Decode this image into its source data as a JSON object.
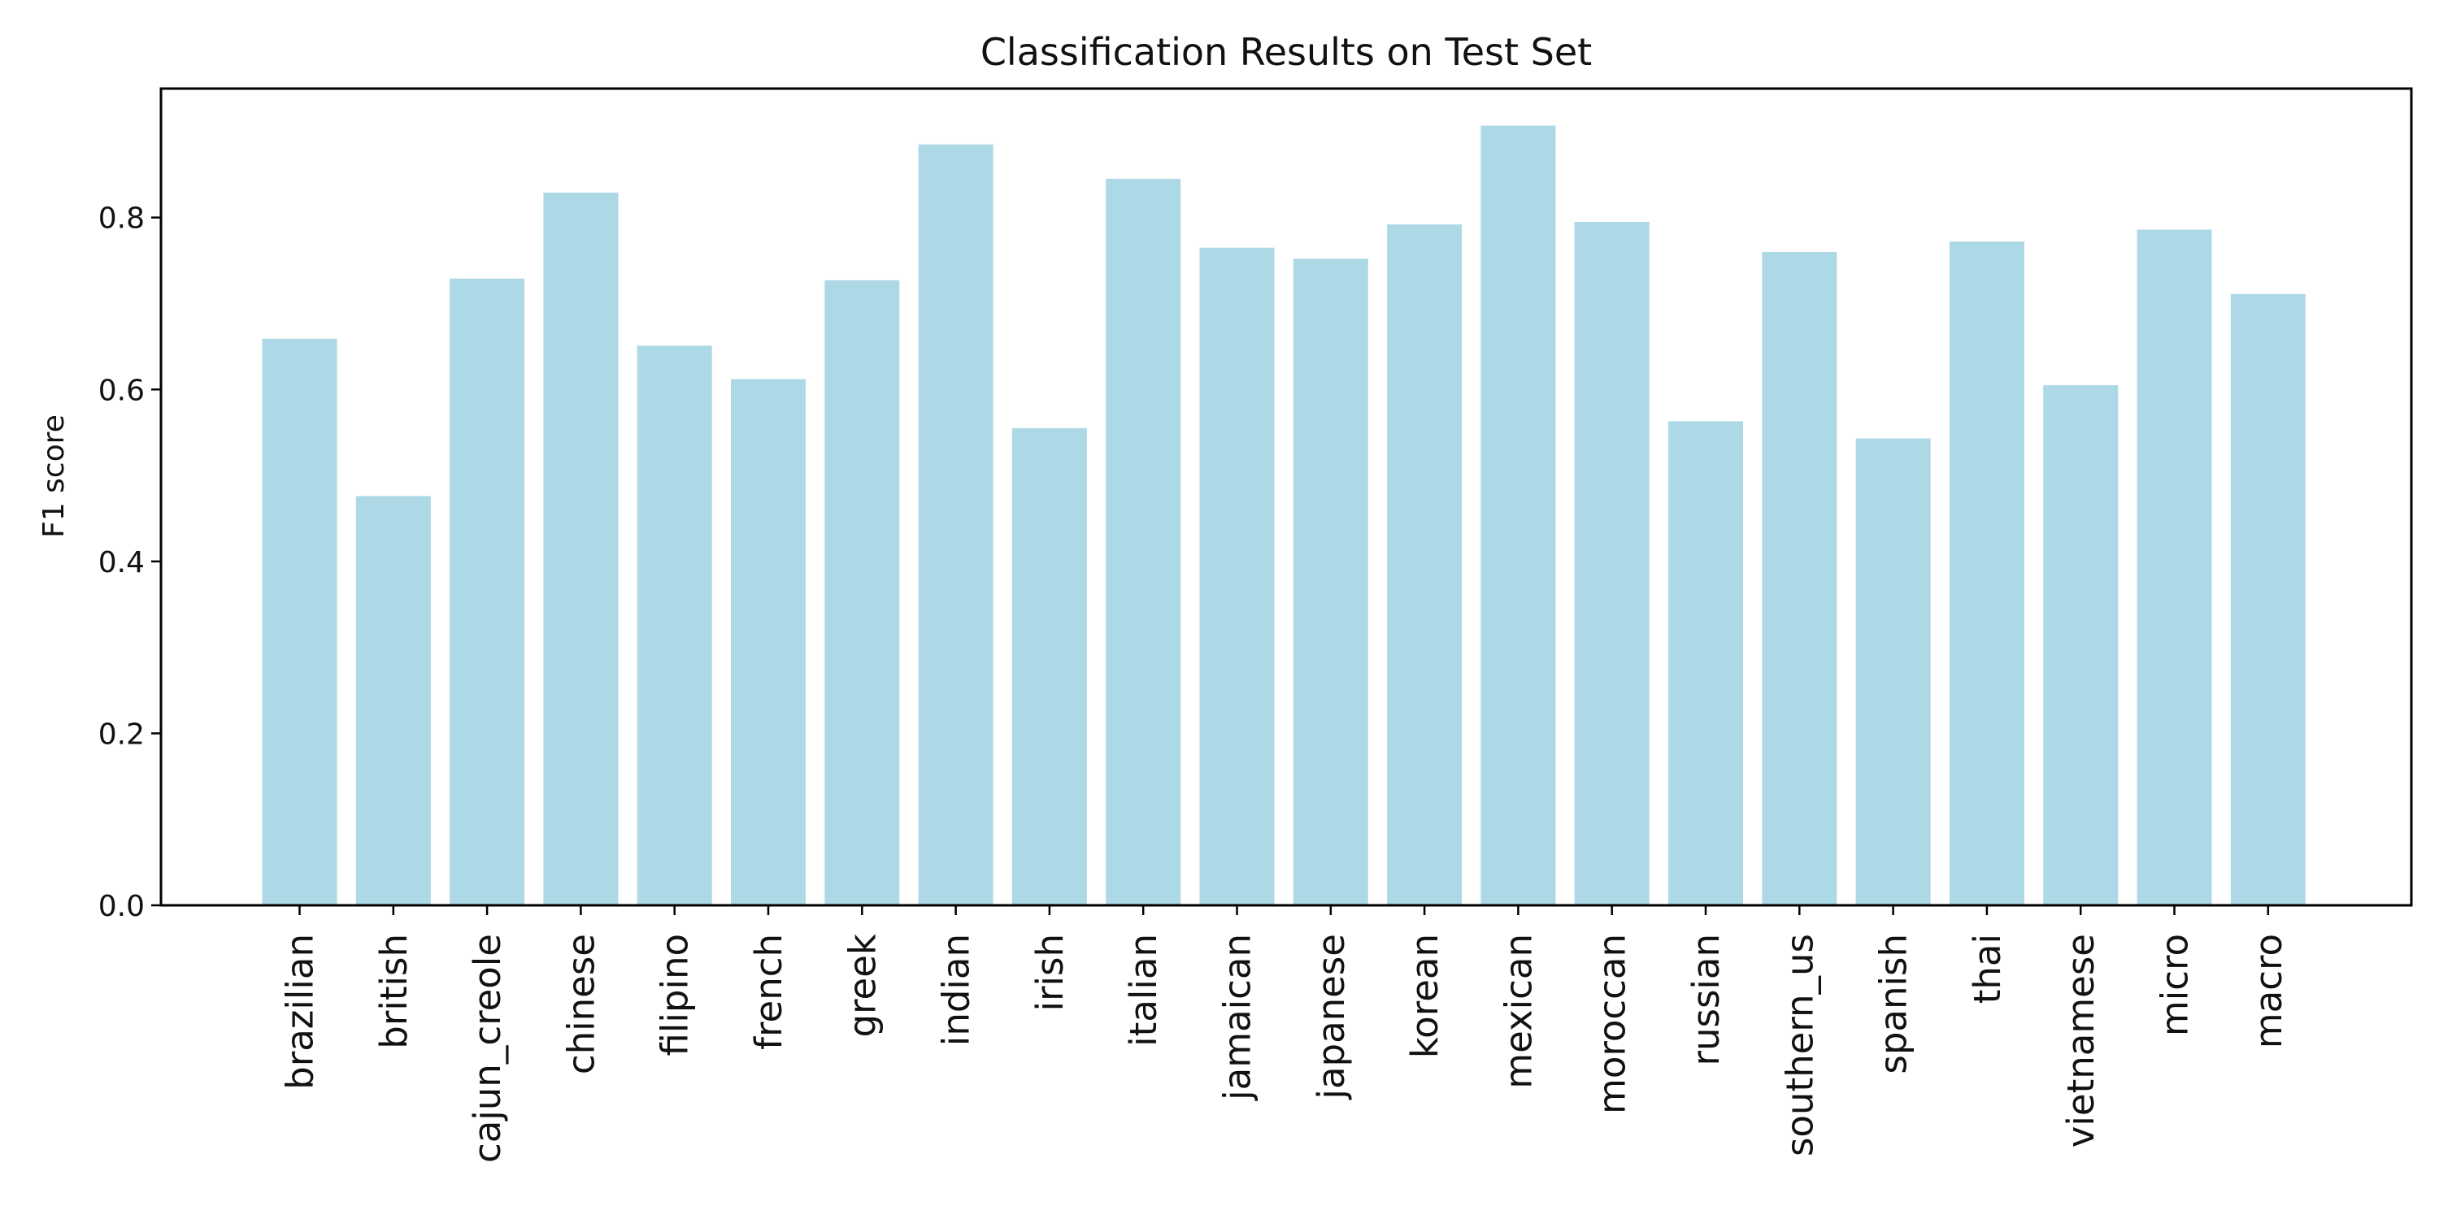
{
  "chart_data": {
    "type": "bar",
    "title": "Classification Results on Test Set",
    "xlabel": "",
    "ylabel": "F1 score",
    "categories": [
      "brazilian",
      "british",
      "cajun_creole",
      "chinese",
      "filipino",
      "french",
      "greek",
      "indian",
      "irish",
      "italian",
      "jamaican",
      "japanese",
      "korean",
      "mexican",
      "moroccan",
      "russian",
      "southern_us",
      "spanish",
      "thai",
      "vietnamese",
      "micro",
      "macro"
    ],
    "values": [
      0.659,
      0.476,
      0.729,
      0.829,
      0.651,
      0.612,
      0.727,
      0.885,
      0.555,
      0.845,
      0.765,
      0.752,
      0.792,
      0.907,
      0.795,
      0.563,
      0.76,
      0.543,
      0.772,
      0.605,
      0.786,
      0.711
    ],
    "ylim": [
      0,
      0.95
    ],
    "yticks": [
      "0.0",
      "0.2",
      "0.4",
      "0.6",
      "0.8"
    ],
    "bar_color": "#add8e6",
    "grid": false,
    "legend": "none"
  }
}
